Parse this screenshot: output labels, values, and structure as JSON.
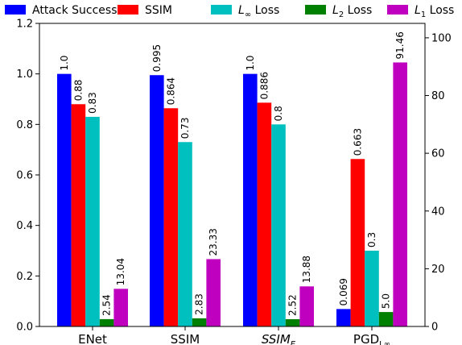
{
  "chart_data": {
    "type": "bar",
    "categories": [
      "ENet",
      "SSIM",
      "SSIM_E",
      "PGD_∞"
    ],
    "category_labels": [
      {
        "main": "ENet",
        "sub": "",
        "italic": false
      },
      {
        "main": "SSIM",
        "sub": "",
        "italic": false
      },
      {
        "main": "SSIM",
        "sub": "E",
        "italic": true
      },
      {
        "main": "PGD",
        "sub": "L∞",
        "italic": false
      }
    ],
    "axes": {
      "left": {
        "ylim": [
          0,
          1.2
        ],
        "ticks": [
          "0.0",
          "0.2",
          "0.4",
          "0.6",
          "0.8",
          "1.0",
          "1.2"
        ]
      },
      "right": {
        "ylim": [
          0,
          105
        ],
        "ticks": [
          "0",
          "20",
          "40",
          "60",
          "80",
          "100"
        ]
      }
    },
    "legend_position": "top",
    "series": [
      {
        "name": "Attack Success",
        "legend_main": "Attack Success",
        "legend_sub": "",
        "legend_suffix": "",
        "axis": "left",
        "color": "#0000ff",
        "values": [
          1.0,
          0.995,
          1.0,
          0.069
        ],
        "labels": [
          "1.0",
          "0.995",
          "1.0",
          "0.069"
        ]
      },
      {
        "name": "SSIM",
        "legend_main": "SSIM",
        "legend_sub": "",
        "legend_suffix": "",
        "axis": "left",
        "color": "#ff0000",
        "values": [
          0.88,
          0.864,
          0.886,
          0.663
        ],
        "labels": [
          "0.88",
          "0.864",
          "0.886",
          "0.663"
        ]
      },
      {
        "name": "L∞ Loss",
        "legend_main": "L",
        "legend_sub": "∞",
        "legend_suffix": " Loss",
        "axis": "left",
        "color": "#00bfbf",
        "values": [
          0.83,
          0.73,
          0.8,
          0.3
        ],
        "labels": [
          "0.83",
          "0.73",
          "0.8",
          "0.3"
        ]
      },
      {
        "name": "L2 Loss",
        "legend_main": "L",
        "legend_sub": "2",
        "legend_suffix": " Loss",
        "axis": "right",
        "color": "#008000",
        "values": [
          2.54,
          2.83,
          2.52,
          5.0
        ],
        "labels": [
          "2.54",
          "2.83",
          "2.52",
          "5.0"
        ]
      },
      {
        "name": "L1 Loss",
        "legend_main": "L",
        "legend_sub": "1",
        "legend_suffix": " Loss",
        "axis": "right",
        "color": "#bf00bf",
        "values": [
          13.04,
          23.33,
          13.88,
          91.46
        ],
        "labels": [
          "13.04",
          "23.33",
          "13.88",
          "91.46"
        ]
      }
    ]
  }
}
